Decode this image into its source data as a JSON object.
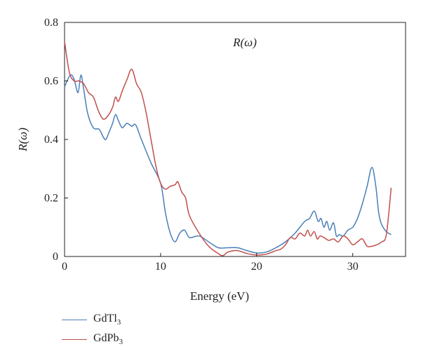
{
  "chart_data": {
    "type": "line",
    "title": "R(ω)",
    "xlabel": "Energy (eV)",
    "ylabel": "R(ω)",
    "xlim": [
      0,
      35.5
    ],
    "ylim": [
      0,
      0.8
    ],
    "xticks": [
      0,
      10,
      20,
      30
    ],
    "xtick_labels": [
      "0",
      "10",
      "20",
      "30"
    ],
    "yticks": [
      0,
      0.2,
      0.4,
      0.6,
      0.8
    ],
    "ytick_labels": [
      "0",
      "0.2",
      "0.4",
      "0.6",
      "0.8"
    ],
    "grid": false,
    "legend_position": "below-left",
    "series": [
      {
        "name": "GdTl3",
        "name_base": "GdTl",
        "name_sub": "3",
        "color": "#4a7fb8",
        "x": [
          0,
          0.6,
          1.0,
          1.4,
          1.7,
          2.0,
          2.4,
          3.0,
          3.6,
          4.0,
          4.3,
          4.7,
          5.0,
          5.3,
          5.6,
          6.0,
          6.5,
          7.0,
          7.4,
          8.0,
          9.0,
          10.0,
          10.5,
          11.0,
          11.5,
          12.0,
          12.5,
          13.0,
          14.0,
          15.0,
          16.0,
          17.0,
          18.0,
          19.0,
          20.0,
          21.0,
          22.0,
          23.0,
          24.0,
          25.0,
          25.5,
          26.0,
          26.4,
          26.7,
          27.0,
          27.3,
          27.6,
          28.0,
          28.3,
          28.6,
          29.0,
          29.5,
          30.0,
          30.5,
          31.0,
          31.5,
          32.0,
          32.4,
          32.7,
          33.0,
          33.5,
          34.0
        ],
        "y": [
          0.58,
          0.62,
          0.605,
          0.56,
          0.62,
          0.57,
          0.49,
          0.44,
          0.435,
          0.41,
          0.4,
          0.43,
          0.455,
          0.485,
          0.465,
          0.44,
          0.455,
          0.445,
          0.45,
          0.4,
          0.32,
          0.25,
          0.15,
          0.08,
          0.05,
          0.08,
          0.09,
          0.065,
          0.07,
          0.05,
          0.03,
          0.03,
          0.03,
          0.02,
          0.012,
          0.015,
          0.03,
          0.05,
          0.08,
          0.12,
          0.13,
          0.155,
          0.12,
          0.13,
          0.1,
          0.12,
          0.09,
          0.115,
          0.07,
          0.075,
          0.07,
          0.09,
          0.1,
          0.13,
          0.18,
          0.24,
          0.305,
          0.24,
          0.15,
          0.11,
          0.085,
          0.075
        ]
      },
      {
        "name": "GdPb3",
        "name_base": "GdPb",
        "name_sub": "3",
        "color": "#c0504d",
        "x": [
          0,
          0.5,
          1.0,
          1.5,
          2.0,
          2.5,
          3.0,
          3.5,
          4.0,
          4.5,
          5.0,
          5.3,
          5.6,
          6.0,
          6.5,
          7.0,
          7.5,
          8.0,
          8.5,
          9.0,
          9.5,
          10.0,
          10.5,
          11.0,
          11.5,
          11.8,
          12.2,
          12.6,
          13.0,
          14.0,
          15.0,
          16.0,
          16.5,
          17.0,
          18.0,
          19.0,
          20.0,
          21.0,
          22.0,
          22.5,
          23.0,
          23.5,
          24.0,
          24.5,
          25.0,
          25.3,
          25.6,
          26.0,
          26.3,
          26.6,
          27.0,
          27.5,
          28.0,
          28.5,
          29.0,
          29.5,
          30.0,
          30.5,
          31.0,
          31.5,
          32.0,
          32.5,
          33.0,
          33.5,
          34.0
        ],
        "y": [
          0.735,
          0.63,
          0.6,
          0.6,
          0.59,
          0.56,
          0.545,
          0.5,
          0.47,
          0.48,
          0.51,
          0.545,
          0.53,
          0.565,
          0.605,
          0.64,
          0.59,
          0.56,
          0.49,
          0.4,
          0.31,
          0.25,
          0.23,
          0.24,
          0.245,
          0.255,
          0.22,
          0.2,
          0.14,
          0.08,
          0.035,
          0.01,
          0.003,
          0.015,
          0.02,
          0.01,
          0.005,
          0.008,
          0.02,
          0.025,
          0.04,
          0.065,
          0.06,
          0.08,
          0.07,
          0.09,
          0.07,
          0.085,
          0.06,
          0.07,
          0.065,
          0.055,
          0.06,
          0.05,
          0.07,
          0.06,
          0.04,
          0.05,
          0.06,
          0.035,
          0.035,
          0.04,
          0.05,
          0.075,
          0.235
        ]
      }
    ]
  }
}
